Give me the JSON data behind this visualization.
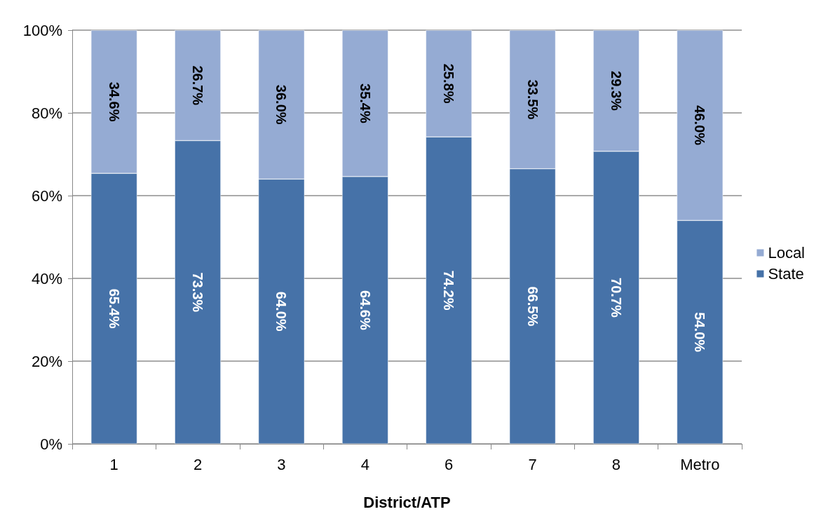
{
  "chart_data": {
    "type": "bar",
    "stacked": true,
    "xlabel": "District/ATP",
    "categories": [
      "1",
      "2",
      "3",
      "4",
      "6",
      "7",
      "8",
      "Metro"
    ],
    "series": [
      {
        "name": "State",
        "color": "#4672a8",
        "values": [
          65.4,
          73.3,
          64.0,
          64.6,
          74.2,
          66.5,
          70.7,
          54.0
        ],
        "value_labels": [
          "65.4%",
          "73.3%",
          "64.0%",
          "64.6%",
          "74.2%",
          "66.5%",
          "70.7%",
          "54.0%"
        ]
      },
      {
        "name": "Local",
        "color": "#95abd3",
        "values": [
          34.6,
          26.7,
          36.0,
          35.4,
          25.8,
          33.5,
          29.3,
          46.0
        ],
        "value_labels": [
          "34.6%",
          "26.7%",
          "36.0%",
          "35.4%",
          "25.8%",
          "33.5%",
          "29.3%",
          "46.0%"
        ]
      }
    ],
    "ylim": [
      0,
      100
    ],
    "yticks": [
      {
        "value": 0,
        "label": "0%"
      },
      {
        "value": 20,
        "label": "20%"
      },
      {
        "value": 40,
        "label": "40%"
      },
      {
        "value": 60,
        "label": "60%"
      },
      {
        "value": 80,
        "label": "80%"
      },
      {
        "value": 100,
        "label": "100%"
      }
    ],
    "grid": "y",
    "legend": "right"
  }
}
